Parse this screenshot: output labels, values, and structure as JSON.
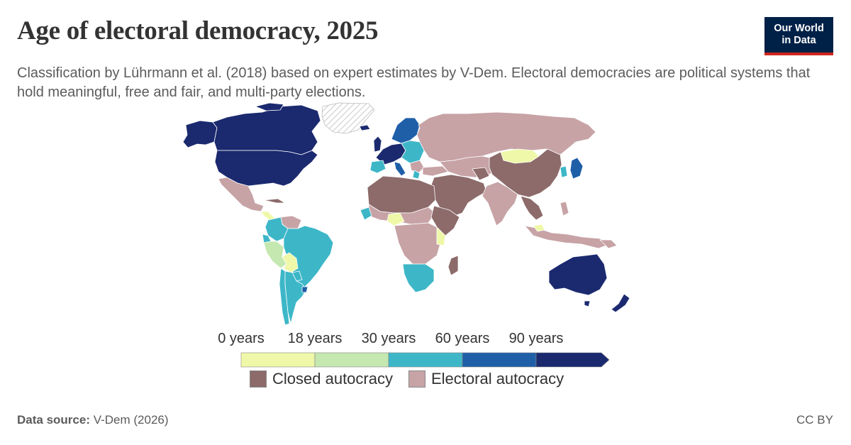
{
  "header": {
    "title": "Age of electoral democracy, 2025",
    "subtitle": "Classification by Lührmann et al. (2018) based on expert estimates by V-Dem. Electoral democracies are political systems that hold meaningful, free and fair, and multi-party elections."
  },
  "logo": {
    "line1": "Our World",
    "line2": "in Data"
  },
  "legend": {
    "tick_labels": [
      "0 years",
      "18 years",
      "30 years",
      "60 years",
      "90 years"
    ],
    "bins": [
      {
        "range": "0-18 years",
        "color": "#eef8a8"
      },
      {
        "range": "18-30 years",
        "color": "#c5e7b0"
      },
      {
        "range": "30-60 years",
        "color": "#3db7c8"
      },
      {
        "range": "60-90 years",
        "color": "#1f5fa8"
      },
      {
        "range": "90+ years",
        "color": "#1b2a6f"
      }
    ],
    "categories": [
      {
        "label": "Closed autocracy",
        "color": "#8d6b6b"
      },
      {
        "label": "Electoral autocracy",
        "color": "#c7a3a6"
      }
    ]
  },
  "map_data": {
    "projection": "world",
    "regions": {
      "Canada": "90+ years",
      "United States": "90+ years",
      "Mexico": "Electoral autocracy",
      "Brazil": "30-60 years",
      "Argentina": "30-60 years",
      "Chile": "30-60 years",
      "Peru": "18-30 years",
      "Bolivia": "0-18 years",
      "Colombia": "30-60 years",
      "Venezuela": "Electoral autocracy",
      "Western Europe": "60-90 years",
      "Nordics": "60-90 years",
      "Russia": "Electoral autocracy",
      "China": "Closed autocracy",
      "Mongolia": "0-18 years",
      "India": "Electoral autocracy",
      "Japan": "60-90 years",
      "South Korea": "30-60 years",
      "Middle East": "Closed autocracy",
      "North Africa": "Closed autocracy",
      "Nigeria": "0-18 years",
      "Southern Africa": "30-60 years",
      "Central Africa": "Electoral autocracy",
      "Madagascar": "Closed autocracy",
      "Indonesia": "Electoral autocracy",
      "Australia": "90+ years",
      "New Zealand": "90+ years",
      "Greenland": "No data"
    }
  },
  "footer": {
    "source_label": "Data source:",
    "source_value": "V-Dem (2026)",
    "license": "CC BY"
  }
}
